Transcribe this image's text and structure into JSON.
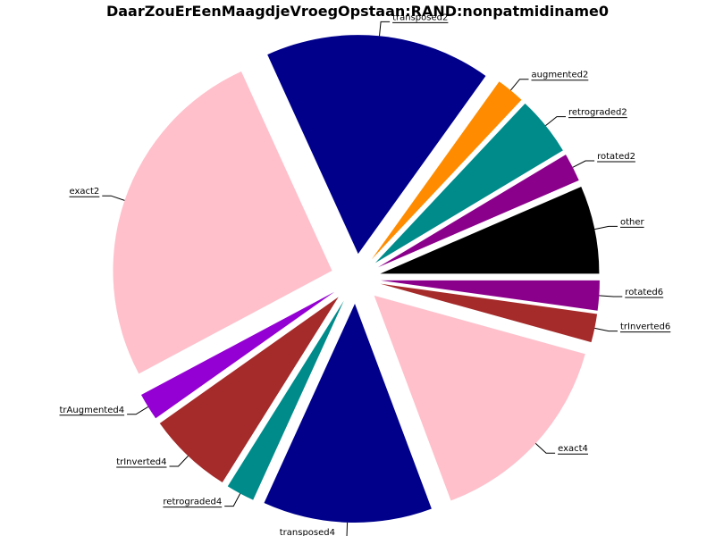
{
  "chart_data": {
    "type": "pie",
    "title": "DaarZouErEenMaagdjeVroegOpstaan:RAND:nonpatmidiname0",
    "slices": [
      {
        "label": "other",
        "value": 6.5,
        "color": "#000000"
      },
      {
        "label": "rotated2",
        "value": 2.1,
        "color": "#8b008b"
      },
      {
        "label": "retrograded2",
        "value": 4.4,
        "color": "#008b8b"
      },
      {
        "label": "augmented2",
        "value": 2.1,
        "color": "#ff8c00"
      },
      {
        "label": "transposed2",
        "value": 16.7,
        "color": "#00008b"
      },
      {
        "label": "exact2",
        "value": 26.0,
        "color": "#ffc0cb"
      },
      {
        "label": "trAugmented4",
        "value": 2.0,
        "color": "#9400d3"
      },
      {
        "label": "trInverted4",
        "value": 6.3,
        "color": "#a52a2a"
      },
      {
        "label": "retrograded4",
        "value": 2.1,
        "color": "#008b8b"
      },
      {
        "label": "transposed4",
        "value": 12.5,
        "color": "#00008b"
      },
      {
        "label": "exact4",
        "value": 15.0,
        "color": "#ffc0cb"
      },
      {
        "label": "trInverted6",
        "value": 2.1,
        "color": "#a52a2a"
      },
      {
        "label": "rotated6",
        "value": 2.2,
        "color": "#8b008b"
      }
    ],
    "start_angle_deg": 0,
    "direction": "counterclockwise",
    "exploded": true
  }
}
